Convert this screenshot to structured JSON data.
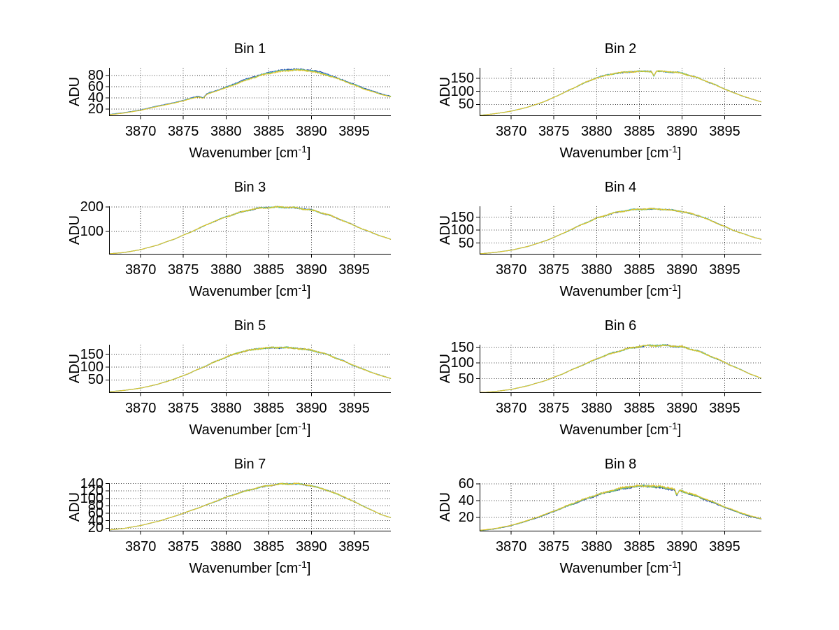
{
  "figure": {
    "background": "#ffffff",
    "axis_color": "#000000",
    "grid_color": "#3c3c3c",
    "text_color": "#000000",
    "ylabel": "ADU",
    "xlabel_pre": "Wavenumber [cm",
    "xlabel_sup": "-1",
    "xlabel_post": "]",
    "series_colors": {
      "navy": "#1c3aa6",
      "cyan": "#46c5dc",
      "green": "#7cc652",
      "yellow": "#e8c32a"
    }
  },
  "chart_data": {
    "type": "line",
    "title": "",
    "xlabel": "Wavenumber [cm^-1]",
    "ylabel": "ADU",
    "grid": true,
    "legend": "none",
    "xlim": [
      3866.3,
      3899.3
    ],
    "xticks": [
      3870,
      3875,
      3880,
      3885,
      3890,
      3895
    ],
    "x_control": [
      3866.3,
      3868,
      3870,
      3872,
      3874,
      3876,
      3878,
      3880,
      3882,
      3884,
      3886,
      3888,
      3890,
      3892,
      3894,
      3896,
      3898,
      3899.3
    ],
    "series_note": "each panel shows several nearly-overlapping spectra drawn in navy, cyan, green and yellow",
    "subplots": [
      {
        "title": "Bin 1",
        "ylim": [
          9,
          94
        ],
        "yticks": [
          20,
          40,
          60,
          80
        ],
        "values": [
          10,
          13,
          18,
          25,
          31,
          39,
          48,
          58,
          70,
          80,
          87,
          90,
          88,
          80,
          69,
          57,
          47,
          42
        ],
        "noise": 1.5,
        "offsets": {
          "navy": 2.2,
          "cyan": 1.2,
          "green": 0.5,
          "yellow": 0
        },
        "dips": [
          {
            "x": 3877.3,
            "depth": 5,
            "width": 0.35
          }
        ]
      },
      {
        "title": "Bin 2",
        "ylim": [
          8,
          190
        ],
        "yticks": [
          50,
          100,
          150
        ],
        "values": [
          8,
          14,
          24,
          40,
          62,
          92,
          124,
          152,
          168,
          175,
          177,
          176,
          170,
          150,
          123,
          95,
          72,
          60
        ],
        "noise": 3.5,
        "offsets": {
          "navy": 0,
          "cyan": 0.25,
          "green": 0.1,
          "yellow": 0.15
        },
        "dips": [
          {
            "x": 3886.7,
            "depth": 17,
            "width": 0.18
          }
        ]
      },
      {
        "title": "Bin 3",
        "ylim": [
          9,
          203
        ],
        "yticks": [
          100,
          200
        ],
        "values": [
          9,
          14,
          26,
          45,
          70,
          100,
          132,
          160,
          182,
          196,
          200,
          197,
          188,
          168,
          140,
          110,
          83,
          68
        ],
        "noise": 3.5,
        "offsets": {
          "navy": 0,
          "cyan": 0.25,
          "green": 0.1,
          "yellow": 0.15
        },
        "dips": []
      },
      {
        "title": "Bin 4",
        "ylim": [
          8,
          192
        ],
        "yticks": [
          50,
          100,
          150
        ],
        "values": [
          8,
          13,
          22,
          37,
          58,
          86,
          117,
          146,
          166,
          178,
          182,
          180,
          172,
          155,
          128,
          99,
          76,
          64
        ],
        "noise": 3.5,
        "offsets": {
          "navy": 0,
          "cyan": 0.25,
          "green": 0.1,
          "yellow": 0.15
        },
        "dips": []
      },
      {
        "title": "Bin 5",
        "ylim": [
          2,
          187
        ],
        "yticks": [
          50,
          100,
          150
        ],
        "values": [
          4,
          9,
          18,
          33,
          54,
          80,
          110,
          139,
          161,
          173,
          176,
          174,
          166,
          147,
          120,
          92,
          68,
          56
        ],
        "noise": 4.0,
        "offsets": {
          "navy": 0,
          "cyan": 0.25,
          "green": 0.1,
          "yellow": 0.15
        },
        "dips": []
      },
      {
        "title": "Bin 6",
        "ylim": [
          7,
          158
        ],
        "yticks": [
          50,
          100,
          150
        ],
        "values": [
          5,
          9,
          16,
          28,
          44,
          65,
          89,
          113,
          133,
          148,
          155,
          156,
          151,
          137,
          114,
          89,
          65,
          51
        ],
        "noise": 3.0,
        "offsets": {
          "navy": 0,
          "cyan": 0.25,
          "green": 0.1,
          "yellow": 0.15
        },
        "dips": []
      },
      {
        "title": "Bin 7",
        "ylim": [
          13,
          141
        ],
        "yticks": [
          20,
          40,
          60,
          80,
          100,
          120,
          140
        ],
        "values": [
          15,
          19,
          27,
          38,
          52,
          68,
          85,
          103,
          118,
          130,
          138,
          140,
          134,
          121,
          102,
          80,
          58,
          48
        ],
        "noise": 2.2,
        "offsets": {
          "navy": 0,
          "cyan": 0.25,
          "green": 0.1,
          "yellow": 0.15
        },
        "dips": []
      },
      {
        "title": "Bin 8",
        "ylim": [
          4,
          61
        ],
        "yticks": [
          20,
          40,
          60
        ],
        "values": [
          4,
          6,
          10,
          16,
          23,
          31,
          39,
          46,
          52,
          56,
          57,
          55,
          51,
          44,
          36,
          28,
          21,
          18
        ],
        "noise": 1.5,
        "offsets": {
          "navy": 0,
          "cyan": 1.0,
          "green": 0.6,
          "yellow": 1.5
        },
        "dips": [
          {
            "x": 3889.4,
            "depth": 6,
            "width": 0.2
          }
        ]
      }
    ]
  }
}
